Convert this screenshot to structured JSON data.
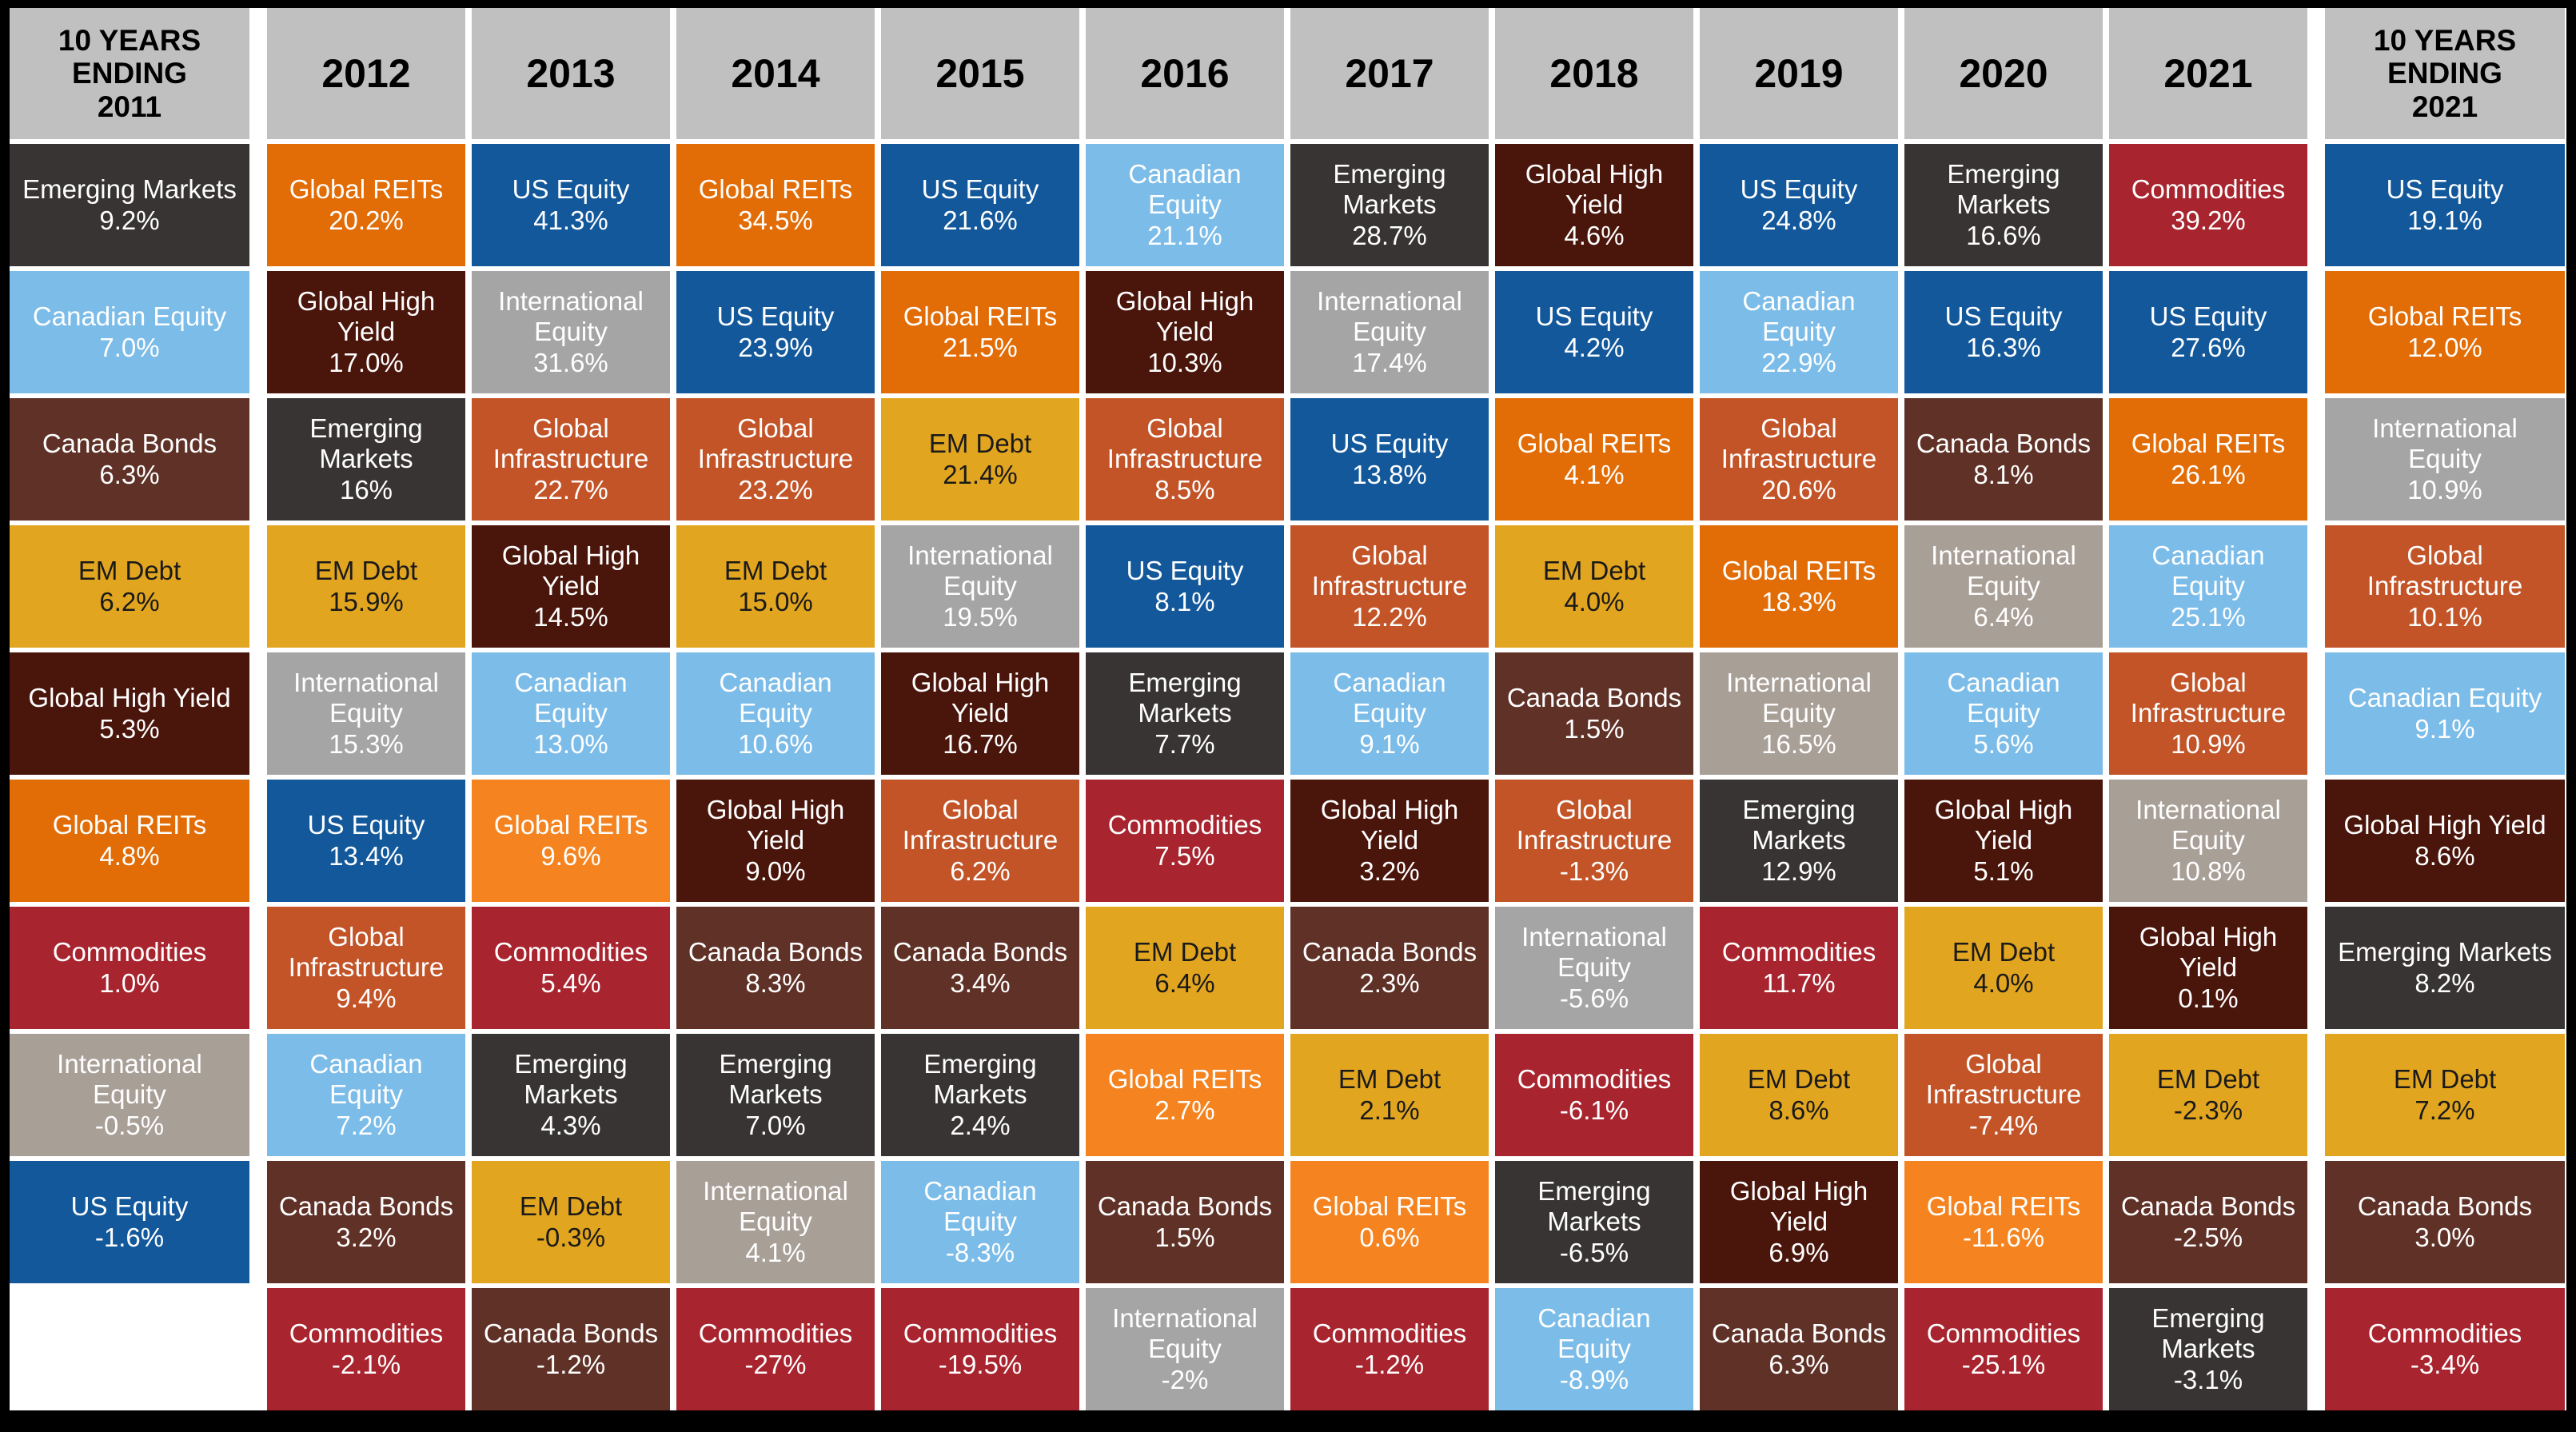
{
  "style": {
    "page_background": "#000000",
    "grid_gap_color": "#FFFFFF",
    "header_bg": "#C0C0C0",
    "header_text": "#000000",
    "asset_colors": {
      "us_equity": {
        "bg": "#12589B",
        "fg": "#FFFFFF"
      },
      "canadian_equity": {
        "bg": "#7CBCE8",
        "fg": "#FFFFFF"
      },
      "canada_bonds": {
        "bg": "#5F3127",
        "fg": "#FFFFFF"
      },
      "em_debt": {
        "bg": "#E2A51F",
        "fg": "#1A1A1A"
      },
      "global_high_yield": {
        "bg": "#4A150B",
        "fg": "#FFFFFF"
      },
      "global_reits": {
        "bg": "#E26C05",
        "fg": "#FFFFFF",
        "alt_bg": "#F58420"
      },
      "commodities": {
        "bg": "#A8242E",
        "fg": "#FFFFFF"
      },
      "international_equity": {
        "bg": "#A5A5A5",
        "fg": "#FFFFFF",
        "alt_bg": "#A89F97"
      },
      "emerging_markets": {
        "bg": "#383434",
        "fg": "#FFFFFF"
      },
      "global_infrastructure": {
        "bg": "#C25428",
        "fg": "#FFFFFF"
      }
    }
  },
  "chart_data": {
    "type": "table",
    "description": "Quilt chart of asset class calendar-year returns ranked best to worst per column",
    "columns": [
      {
        "header": "10 YEARS\nENDING\n2011",
        "kind": "decade",
        "cells": [
          {
            "asset": "emerging_markets",
            "label": "Emerging Markets",
            "value": "9.2%"
          },
          {
            "asset": "canadian_equity",
            "label": "Canadian Equity",
            "value": "7.0%"
          },
          {
            "asset": "canada_bonds",
            "label": "Canada Bonds",
            "value": "6.3%"
          },
          {
            "asset": "em_debt",
            "label": "EM Debt",
            "value": "6.2%"
          },
          {
            "asset": "global_high_yield",
            "label": "Global High Yield",
            "value": "5.3%"
          },
          {
            "asset": "global_reits",
            "label": "Global REITs",
            "value": "4.8%"
          },
          {
            "asset": "commodities",
            "label": "Commodities",
            "value": "1.0%"
          },
          {
            "asset": "international_equity",
            "label": "International Equity",
            "value": "-0.5%",
            "shade": "alt"
          },
          {
            "asset": "us_equity",
            "label": "US Equity",
            "value": "-1.6%"
          },
          {
            "empty": true
          }
        ]
      },
      {
        "header": "2012",
        "kind": "year",
        "cells": [
          {
            "asset": "global_reits",
            "label": "Global REITs",
            "value": "20.2%"
          },
          {
            "asset": "global_high_yield",
            "label": "Global High Yield",
            "value": "17.0%"
          },
          {
            "asset": "emerging_markets",
            "label": "Emerging Markets",
            "value": "16%"
          },
          {
            "asset": "em_debt",
            "label": "EM Debt",
            "value": "15.9%"
          },
          {
            "asset": "international_equity",
            "label": "International Equity",
            "value": "15.3%"
          },
          {
            "asset": "us_equity",
            "label": "US Equity",
            "value": "13.4%"
          },
          {
            "asset": "global_infrastructure",
            "label": "Global Infrastructure",
            "value": "9.4%"
          },
          {
            "asset": "canadian_equity",
            "label": "Canadian Equity",
            "value": "7.2%"
          },
          {
            "asset": "canada_bonds",
            "label": "Canada Bonds",
            "value": "3.2%"
          },
          {
            "asset": "commodities",
            "label": "Commodities",
            "value": "-2.1%"
          }
        ]
      },
      {
        "header": "2013",
        "kind": "year",
        "cells": [
          {
            "asset": "us_equity",
            "label": "US Equity",
            "value": "41.3%"
          },
          {
            "asset": "international_equity",
            "label": "International Equity",
            "value": "31.6%"
          },
          {
            "asset": "global_infrastructure",
            "label": "Global Infrastructure",
            "value": "22.7%"
          },
          {
            "asset": "global_high_yield",
            "label": "Global High Yield",
            "value": "14.5%"
          },
          {
            "asset": "canadian_equity",
            "label": "Canadian Equity",
            "value": "13.0%"
          },
          {
            "asset": "global_reits",
            "label": "Global REITs",
            "value": "9.6%",
            "shade": "alt"
          },
          {
            "asset": "commodities",
            "label": "Commodities",
            "value": "5.4%"
          },
          {
            "asset": "emerging_markets",
            "label": "Emerging Markets",
            "value": "4.3%"
          },
          {
            "asset": "em_debt",
            "label": "EM Debt",
            "value": "-0.3%"
          },
          {
            "asset": "canada_bonds",
            "label": "Canada Bonds",
            "value": "-1.2%"
          }
        ]
      },
      {
        "header": "2014",
        "kind": "year",
        "cells": [
          {
            "asset": "global_reits",
            "label": "Global REITs",
            "value": "34.5%"
          },
          {
            "asset": "us_equity",
            "label": "US Equity",
            "value": "23.9%"
          },
          {
            "asset": "global_infrastructure",
            "label": "Global Infrastructure",
            "value": "23.2%"
          },
          {
            "asset": "em_debt",
            "label": "EM Debt",
            "value": "15.0%"
          },
          {
            "asset": "canadian_equity",
            "label": "Canadian Equity",
            "value": "10.6%"
          },
          {
            "asset": "global_high_yield",
            "label": "Global High Yield",
            "value": "9.0%"
          },
          {
            "asset": "canada_bonds",
            "label": "Canada Bonds",
            "value": "8.3%"
          },
          {
            "asset": "emerging_markets",
            "label": "Emerging Markets",
            "value": "7.0%"
          },
          {
            "asset": "international_equity",
            "label": "International Equity",
            "value": "4.1%",
            "shade": "alt"
          },
          {
            "asset": "commodities",
            "label": "Commodities",
            "value": "-27%"
          }
        ]
      },
      {
        "header": "2015",
        "kind": "year",
        "cells": [
          {
            "asset": "us_equity",
            "label": "US Equity",
            "value": "21.6%"
          },
          {
            "asset": "global_reits",
            "label": "Global REITs",
            "value": "21.5%"
          },
          {
            "asset": "em_debt",
            "label": "EM Debt",
            "value": "21.4%"
          },
          {
            "asset": "international_equity",
            "label": "International Equity",
            "value": "19.5%"
          },
          {
            "asset": "global_high_yield",
            "label": "Global High Yield",
            "value": "16.7%"
          },
          {
            "asset": "global_infrastructure",
            "label": "Global Infrastructure",
            "value": "6.2%"
          },
          {
            "asset": "canada_bonds",
            "label": "Canada Bonds",
            "value": "3.4%"
          },
          {
            "asset": "emerging_markets",
            "label": "Emerging Markets",
            "value": "2.4%"
          },
          {
            "asset": "canadian_equity",
            "label": "Canadian Equity",
            "value": "-8.3%"
          },
          {
            "asset": "commodities",
            "label": "Commodities",
            "value": "-19.5%"
          }
        ]
      },
      {
        "header": "2016",
        "kind": "year",
        "cells": [
          {
            "asset": "canadian_equity",
            "label": "Canadian Equity",
            "value": "21.1%"
          },
          {
            "asset": "global_high_yield",
            "label": "Global High Yield",
            "value": "10.3%"
          },
          {
            "asset": "global_infrastructure",
            "label": "Global Infrastructure",
            "value": "8.5%"
          },
          {
            "asset": "us_equity",
            "label": "US Equity",
            "value": "8.1%"
          },
          {
            "asset": "emerging_markets",
            "label": "Emerging Markets",
            "value": "7.7%"
          },
          {
            "asset": "commodities",
            "label": "Commodities",
            "value": "7.5%"
          },
          {
            "asset": "em_debt",
            "label": "EM Debt",
            "value": "6.4%"
          },
          {
            "asset": "global_reits",
            "label": "Global REITs",
            "value": "2.7%",
            "shade": "alt"
          },
          {
            "asset": "canada_bonds",
            "label": "Canada Bonds",
            "value": "1.5%"
          },
          {
            "asset": "international_equity",
            "label": "International Equity",
            "value": "-2%"
          }
        ]
      },
      {
        "header": "2017",
        "kind": "year",
        "cells": [
          {
            "asset": "emerging_markets",
            "label": "Emerging Markets",
            "value": "28.7%"
          },
          {
            "asset": "international_equity",
            "label": "International Equity",
            "value": "17.4%"
          },
          {
            "asset": "us_equity",
            "label": "US Equity",
            "value": "13.8%"
          },
          {
            "asset": "global_infrastructure",
            "label": "Global Infrastructure",
            "value": "12.2%"
          },
          {
            "asset": "canadian_equity",
            "label": "Canadian Equity",
            "value": "9.1%"
          },
          {
            "asset": "global_high_yield",
            "label": "Global High Yield",
            "value": "3.2%"
          },
          {
            "asset": "canada_bonds",
            "label": "Canada Bonds",
            "value": "2.3%"
          },
          {
            "asset": "em_debt",
            "label": "EM Debt",
            "value": "2.1%"
          },
          {
            "asset": "global_reits",
            "label": "Global REITs",
            "value": "0.6%",
            "shade": "alt"
          },
          {
            "asset": "commodities",
            "label": "Commodities",
            "value": "-1.2%"
          }
        ]
      },
      {
        "header": "2018",
        "kind": "year",
        "cells": [
          {
            "asset": "global_high_yield",
            "label": "Global High Yield",
            "value": "4.6%"
          },
          {
            "asset": "us_equity",
            "label": "US Equity",
            "value": "4.2%"
          },
          {
            "asset": "global_reits",
            "label": "Global REITs",
            "value": "4.1%"
          },
          {
            "asset": "em_debt",
            "label": "EM Debt",
            "value": "4.0%"
          },
          {
            "asset": "canada_bonds",
            "label": "Canada Bonds",
            "value": "1.5%"
          },
          {
            "asset": "global_infrastructure",
            "label": "Global Infrastructure",
            "value": "-1.3%"
          },
          {
            "asset": "international_equity",
            "label": "International Equity",
            "value": "-5.6%"
          },
          {
            "asset": "commodities",
            "label": "Commodities",
            "value": "-6.1%"
          },
          {
            "asset": "emerging_markets",
            "label": "Emerging Markets",
            "value": "-6.5%"
          },
          {
            "asset": "canadian_equity",
            "label": "Canadian Equity",
            "value": "-8.9%"
          }
        ]
      },
      {
        "header": "2019",
        "kind": "year",
        "cells": [
          {
            "asset": "us_equity",
            "label": "US Equity",
            "value": "24.8%"
          },
          {
            "asset": "canadian_equity",
            "label": "Canadian Equity",
            "value": "22.9%"
          },
          {
            "asset": "global_infrastructure",
            "label": "Global Infrastructure",
            "value": "20.6%"
          },
          {
            "asset": "global_reits",
            "label": "Global REITs",
            "value": "18.3%"
          },
          {
            "asset": "international_equity",
            "label": "International Equity",
            "value": "16.5%",
            "shade": "alt"
          },
          {
            "asset": "emerging_markets",
            "label": "Emerging Markets",
            "value": "12.9%"
          },
          {
            "asset": "commodities",
            "label": "Commodities",
            "value": "11.7%"
          },
          {
            "asset": "em_debt",
            "label": "EM Debt",
            "value": "8.6%"
          },
          {
            "asset": "global_high_yield",
            "label": "Global High Yield",
            "value": "6.9%"
          },
          {
            "asset": "canada_bonds",
            "label": "Canada Bonds",
            "value": "6.3%"
          }
        ]
      },
      {
        "header": "2020",
        "kind": "year",
        "cells": [
          {
            "asset": "emerging_markets",
            "label": "Emerging Markets",
            "value": "16.6%"
          },
          {
            "asset": "us_equity",
            "label": "US Equity",
            "value": "16.3%"
          },
          {
            "asset": "canada_bonds",
            "label": "Canada Bonds",
            "value": "8.1%"
          },
          {
            "asset": "international_equity",
            "label": "International Equity",
            "value": "6.4%",
            "shade": "alt"
          },
          {
            "asset": "canadian_equity",
            "label": "Canadian Equity",
            "value": "5.6%"
          },
          {
            "asset": "global_high_yield",
            "label": "Global High Yield",
            "value": "5.1%"
          },
          {
            "asset": "em_debt",
            "label": "EM Debt",
            "value": "4.0%"
          },
          {
            "asset": "global_infrastructure",
            "label": "Global Infrastructure",
            "value": "-7.4%"
          },
          {
            "asset": "global_reits",
            "label": "Global REITs",
            "value": "-11.6%",
            "shade": "alt"
          },
          {
            "asset": "commodities",
            "label": "Commodities",
            "value": "-25.1%"
          }
        ]
      },
      {
        "header": "2021",
        "kind": "year",
        "cells": [
          {
            "asset": "commodities",
            "label": "Commodities",
            "value": "39.2%"
          },
          {
            "asset": "us_equity",
            "label": "US Equity",
            "value": "27.6%"
          },
          {
            "asset": "global_reits",
            "label": "Global REITs",
            "value": "26.1%"
          },
          {
            "asset": "canadian_equity",
            "label": "Canadian Equity",
            "value": "25.1%"
          },
          {
            "asset": "global_infrastructure",
            "label": "Global Infrastructure",
            "value": "10.9%"
          },
          {
            "asset": "international_equity",
            "label": "International Equity",
            "value": "10.8%",
            "shade": "alt"
          },
          {
            "asset": "global_high_yield",
            "label": "Global High Yield",
            "value": "0.1%"
          },
          {
            "asset": "em_debt",
            "label": "EM Debt",
            "value": "-2.3%"
          },
          {
            "asset": "canada_bonds",
            "label": "Canada Bonds",
            "value": "-2.5%"
          },
          {
            "asset": "emerging_markets",
            "label": "Emerging Markets",
            "value": "-3.1%"
          }
        ]
      },
      {
        "header": "10 YEARS\nENDING\n2021",
        "kind": "decade",
        "cells": [
          {
            "asset": "us_equity",
            "label": "US Equity",
            "value": "19.1%"
          },
          {
            "asset": "global_reits",
            "label": "Global REITs",
            "value": "12.0%"
          },
          {
            "asset": "international_equity",
            "label": "International Equity",
            "value": "10.9%"
          },
          {
            "asset": "global_infrastructure",
            "label": "Global Infrastructure",
            "value": "10.1%"
          },
          {
            "asset": "canadian_equity",
            "label": "Canadian Equity",
            "value": "9.1%"
          },
          {
            "asset": "global_high_yield",
            "label": "Global High Yield",
            "value": "8.6%"
          },
          {
            "asset": "emerging_markets",
            "label": "Emerging Markets",
            "value": "8.2%"
          },
          {
            "asset": "em_debt",
            "label": "EM Debt",
            "value": "7.2%"
          },
          {
            "asset": "canada_bonds",
            "label": "Canada Bonds",
            "value": "3.0%"
          },
          {
            "asset": "commodities",
            "label": "Commodities",
            "value": "-3.4%"
          }
        ]
      }
    ]
  }
}
